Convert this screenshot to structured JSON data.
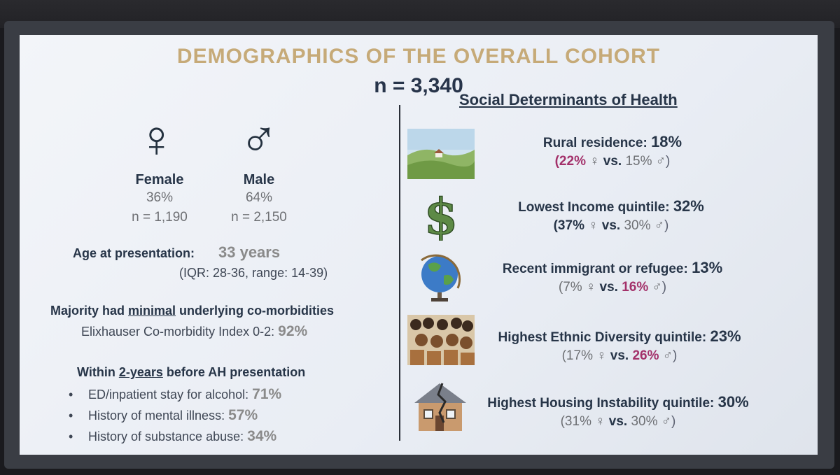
{
  "slide": {
    "title": "DEMOGRAPHICS OF THE OVERALL COHORT",
    "n_total": "n = 3,340"
  },
  "female": {
    "symbol": "♀",
    "label": "Female",
    "percent": "36%",
    "n": "n = 1,190"
  },
  "male": {
    "symbol": "♂",
    "label": "Male",
    "percent": "64%",
    "n": "n = 2,150"
  },
  "age": {
    "label": "Age at presentation:",
    "value": "33 years",
    "detail": "(IQR: 28-36, range: 14-39)"
  },
  "comorbidity": {
    "line1_pre": "Majority had ",
    "line1_emph": "minimal",
    "line1_post": " underlying co-morbidities",
    "line2_label": "Elixhauser Co-morbidity Index 0-2:",
    "line2_value": "92%"
  },
  "prior": {
    "heading_pre": "Within ",
    "heading_emph": "2-years",
    "heading_post": " before AH presentation",
    "bullets": [
      {
        "label": "ED/inpatient stay for alcohol:",
        "value": "71%"
      },
      {
        "label": "History of mental illness:",
        "value": "57%"
      },
      {
        "label": "History of substance abuse:",
        "value": "34%"
      }
    ]
  },
  "sdh": {
    "title": "Social Determinants of Health",
    "female_symbol": "♀",
    "male_symbol": "♂",
    "vs": "vs.",
    "items": [
      {
        "icon": "landscape-icon",
        "label": "Rural residence:",
        "value": "18%",
        "female": "(22%",
        "male": "15%",
        "close": ")"
      },
      {
        "icon": "dollar-icon",
        "label": "Lowest Income quintile:",
        "value": "32%",
        "female": "(37%",
        "male": "30%",
        "close": ")"
      },
      {
        "icon": "globe-icon",
        "label": "Recent immigrant or refugee:",
        "value": "13%",
        "female": "(7%",
        "male": "16%",
        "close": ")"
      },
      {
        "icon": "crowd-icon",
        "label": "Highest Ethnic Diversity quintile:",
        "value": "23%",
        "female": "(17%",
        "male": "26%",
        "close": ")"
      },
      {
        "icon": "broken-house-icon",
        "label": "Highest Housing Instability quintile:",
        "value": "30%",
        "female": "(31%",
        "male": "30%",
        "close": ")"
      }
    ]
  }
}
